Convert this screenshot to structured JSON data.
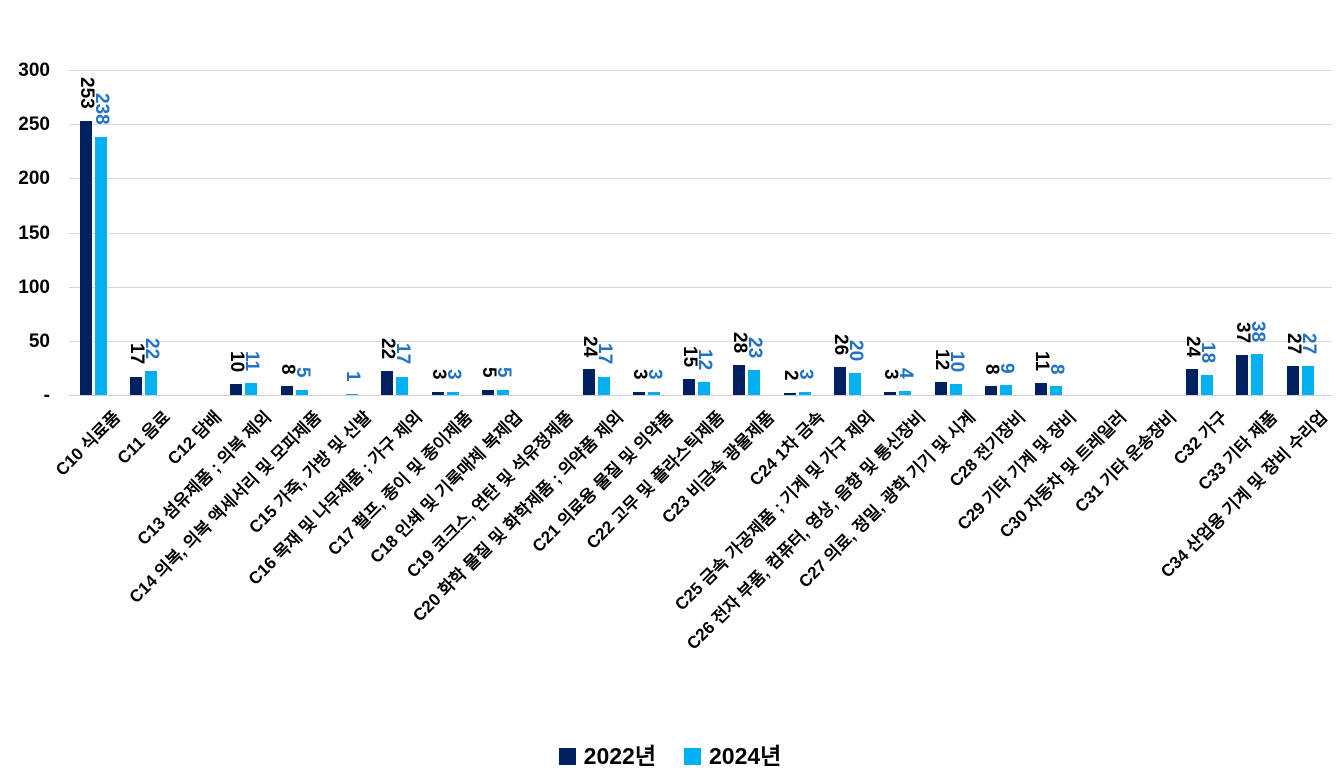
{
  "chart_data": {
    "type": "bar",
    "title": "",
    "xlabel": "",
    "ylabel": "",
    "ylim": [
      0,
      300
    ],
    "grid": true,
    "legend_position": "bottom",
    "y_ticks": [
      {
        "value": 300,
        "label": "300"
      },
      {
        "value": 250,
        "label": "250"
      },
      {
        "value": 200,
        "label": "200"
      },
      {
        "value": 150,
        "label": "150"
      },
      {
        "value": 100,
        "label": "100"
      },
      {
        "value": 50,
        "label": "50"
      },
      {
        "value": 0,
        "label": "-"
      }
    ],
    "categories": [
      "C10 식료품",
      "C11 음료",
      "C12 담배",
      "C13 섬유제품 ; 의복 제외",
      "C14 의복, 의복 액세서리 및 모피제품",
      "C15 가죽, 가방 및 신발",
      "C16 목재 및 나무제품 ; 가구 제외",
      "C17 펄프, 종이 및 종이제품",
      "C18 인쇄 및 기록매체 복제업",
      "C19 코크스, 연탄 및 석유정제품",
      "C20 화학 물질 및 화학제품 ; 의약품 제외",
      "C21 의료용 물질 및 의약품",
      "C22 고무 및 플라스틱제품",
      "C23 비금속 광물제품",
      "C24 1차 금속",
      "C25 금속 가공제품 ; 기계 및 가구 제외",
      "C26 전자 부품, 컴퓨터, 영상, 음향 및 통신장비",
      "C27 의료, 정밀, 광학 기기 및 시계",
      "C28 전기장비",
      "C29 기타 기계 및 장비",
      "C30 자동차 및 트레일러",
      "C31 기타 운송장비",
      "C32 가구",
      "C33 기타 제품",
      "C34 산업용 기계 및 장비 수리업"
    ],
    "series": [
      {
        "name": "2022년",
        "color": "#002060",
        "label_color": "#000000",
        "values": [
          253,
          17,
          null,
          10,
          8,
          null,
          22,
          3,
          5,
          null,
          24,
          3,
          15,
          28,
          2,
          26,
          3,
          12,
          8,
          11,
          null,
          null,
          24,
          37,
          27
        ]
      },
      {
        "name": "2024년",
        "color": "#00B0F0",
        "label_color": "#1F72C6",
        "values": [
          238,
          22,
          null,
          11,
          5,
          1,
          17,
          3,
          5,
          null,
          17,
          3,
          12,
          23,
          3,
          20,
          4,
          10,
          9,
          8,
          null,
          null,
          18,
          38,
          27
        ]
      }
    ]
  },
  "colors": {
    "gridline": "#d9d9d9",
    "background": "#ffffff"
  }
}
